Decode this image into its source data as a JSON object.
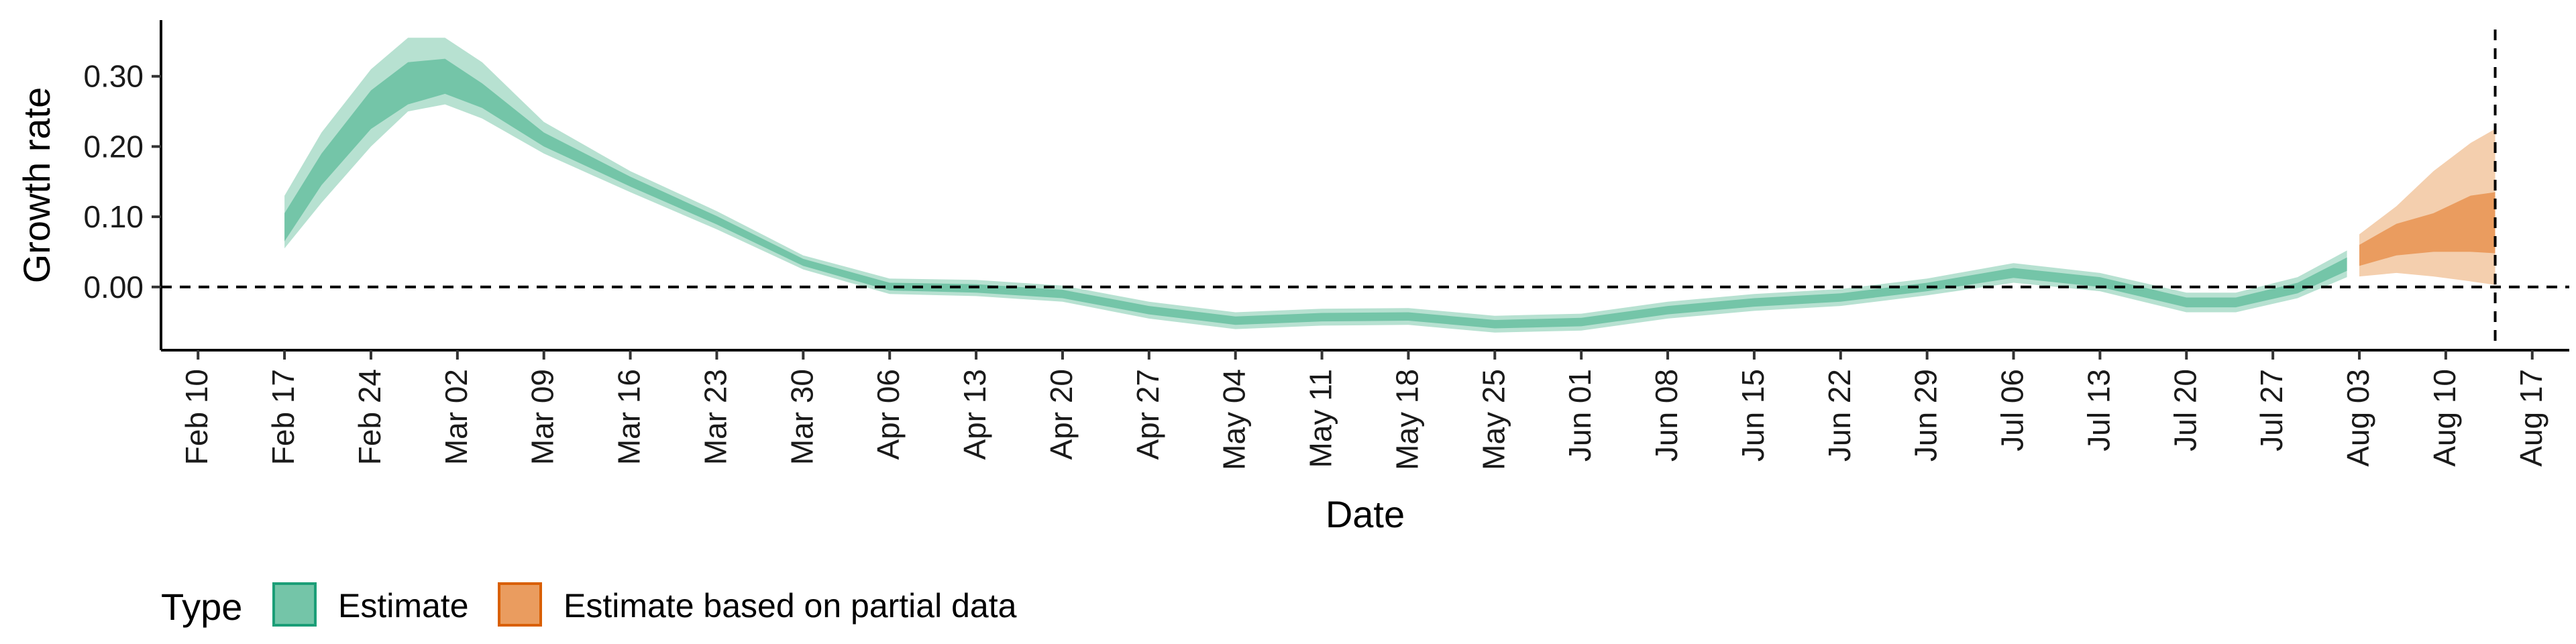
{
  "chart_data": {
    "type": "area",
    "xlabel": "Date",
    "ylabel": "Growth rate",
    "x_range": [
      "2020-02-07",
      "2020-08-20"
    ],
    "ylim": [
      -0.09,
      0.38
    ],
    "y_ticks": [
      0.0,
      0.1,
      0.2,
      0.3
    ],
    "y_tick_labels": [
      "0.00",
      "0.10",
      "0.20",
      "0.30"
    ],
    "x_ticks": [
      "2020-02-10",
      "2020-02-17",
      "2020-02-24",
      "2020-03-02",
      "2020-03-09",
      "2020-03-16",
      "2020-03-23",
      "2020-03-30",
      "2020-04-06",
      "2020-04-13",
      "2020-04-20",
      "2020-04-27",
      "2020-05-04",
      "2020-05-11",
      "2020-05-18",
      "2020-05-25",
      "2020-06-01",
      "2020-06-08",
      "2020-06-15",
      "2020-06-22",
      "2020-06-29",
      "2020-07-06",
      "2020-07-13",
      "2020-07-20",
      "2020-07-27",
      "2020-08-03",
      "2020-08-10",
      "2020-08-17"
    ],
    "x_tick_labels": [
      "Feb 10",
      "Feb 17",
      "Feb 24",
      "Mar 02",
      "Mar 09",
      "Mar 16",
      "Mar 23",
      "Mar 30",
      "Apr 06",
      "Apr 13",
      "Apr 20",
      "Apr 27",
      "May 04",
      "May 11",
      "May 18",
      "May 25",
      "Jun 01",
      "Jun 08",
      "Jun 15",
      "Jun 22",
      "Jun 29",
      "Jul 06",
      "Jul 13",
      "Jul 20",
      "Jul 27",
      "Aug 03",
      "Aug 10",
      "Aug 17"
    ],
    "reference_lines": {
      "horizontal_y": 0.0,
      "vertical_x": "2020-08-14",
      "style": "dashed"
    },
    "grid": false,
    "legend": {
      "position": "bottom-left",
      "title": "Type",
      "entries": [
        {
          "label": "Estimate",
          "fill": "#74c5a8",
          "stroke": "#1b9e77"
        },
        {
          "label": "Estimate based on partial data",
          "fill": "#ea9c5f",
          "stroke": "#d95f02"
        }
      ]
    },
    "series": [
      {
        "name": "Estimate",
        "color_outer": "#b7e1d1",
        "color_inner": "#74c5a8",
        "points": [
          {
            "x": "2020-02-17",
            "y": 0.08,
            "lo90": 0.055,
            "hi90": 0.13,
            "lo50": 0.065,
            "hi50": 0.105
          },
          {
            "x": "2020-02-20",
            "y": 0.17,
            "lo90": 0.12,
            "hi90": 0.22,
            "lo50": 0.145,
            "hi50": 0.19
          },
          {
            "x": "2020-02-24",
            "y": 0.25,
            "lo90": 0.2,
            "hi90": 0.31,
            "lo50": 0.225,
            "hi50": 0.28
          },
          {
            "x": "2020-02-27",
            "y": 0.29,
            "lo90": 0.25,
            "hi90": 0.355,
            "lo50": 0.26,
            "hi50": 0.32
          },
          {
            "x": "2020-03-01",
            "y": 0.3,
            "lo90": 0.26,
            "hi90": 0.355,
            "lo50": 0.275,
            "hi50": 0.325
          },
          {
            "x": "2020-03-04",
            "y": 0.27,
            "lo90": 0.24,
            "hi90": 0.32,
            "lo50": 0.255,
            "hi50": 0.29
          },
          {
            "x": "2020-03-09",
            "y": 0.21,
            "lo90": 0.19,
            "hi90": 0.235,
            "lo50": 0.2,
            "hi50": 0.22
          },
          {
            "x": "2020-03-16",
            "y": 0.15,
            "lo90": 0.135,
            "hi90": 0.165,
            "lo50": 0.143,
            "hi50": 0.157
          },
          {
            "x": "2020-03-23",
            "y": 0.095,
            "lo90": 0.082,
            "hi90": 0.108,
            "lo50": 0.089,
            "hi50": 0.101
          },
          {
            "x": "2020-03-30",
            "y": 0.035,
            "lo90": 0.025,
            "hi90": 0.045,
            "lo50": 0.03,
            "hi50": 0.04
          },
          {
            "x": "2020-04-06",
            "y": 0.0,
            "lo90": -0.01,
            "hi90": 0.012,
            "lo50": -0.005,
            "hi50": 0.006
          },
          {
            "x": "2020-04-13",
            "y": -0.003,
            "lo90": -0.013,
            "hi90": 0.01,
            "lo50": -0.008,
            "hi50": 0.004
          },
          {
            "x": "2020-04-20",
            "y": -0.01,
            "lo90": -0.021,
            "hi90": 0.002,
            "lo50": -0.016,
            "hi50": -0.004
          },
          {
            "x": "2020-04-27",
            "y": -0.033,
            "lo90": -0.045,
            "hi90": -0.021,
            "lo50": -0.039,
            "hi50": -0.027
          },
          {
            "x": "2020-05-04",
            "y": -0.048,
            "lo90": -0.06,
            "hi90": -0.036,
            "lo50": -0.054,
            "hi50": -0.042
          },
          {
            "x": "2020-05-11",
            "y": -0.043,
            "lo90": -0.055,
            "hi90": -0.031,
            "lo50": -0.049,
            "hi50": -0.037
          },
          {
            "x": "2020-05-18",
            "y": -0.042,
            "lo90": -0.054,
            "hi90": -0.03,
            "lo50": -0.048,
            "hi50": -0.036
          },
          {
            "x": "2020-05-25",
            "y": -0.053,
            "lo90": -0.065,
            "hi90": -0.041,
            "lo50": -0.059,
            "hi50": -0.047
          },
          {
            "x": "2020-06-01",
            "y": -0.05,
            "lo90": -0.062,
            "hi90": -0.038,
            "lo50": -0.056,
            "hi50": -0.044
          },
          {
            "x": "2020-06-08",
            "y": -0.033,
            "lo90": -0.045,
            "hi90": -0.021,
            "lo50": -0.039,
            "hi50": -0.027
          },
          {
            "x": "2020-06-15",
            "y": -0.022,
            "lo90": -0.034,
            "hi90": -0.01,
            "lo50": -0.028,
            "hi50": -0.016
          },
          {
            "x": "2020-06-22",
            "y": -0.015,
            "lo90": -0.027,
            "hi90": -0.003,
            "lo50": -0.021,
            "hi50": -0.009
          },
          {
            "x": "2020-06-29",
            "y": 0.0,
            "lo90": -0.012,
            "hi90": 0.012,
            "lo50": -0.006,
            "hi50": 0.006
          },
          {
            "x": "2020-07-06",
            "y": 0.02,
            "lo90": 0.006,
            "hi90": 0.034,
            "lo50": 0.013,
            "hi50": 0.027
          },
          {
            "x": "2020-07-13",
            "y": 0.007,
            "lo90": -0.006,
            "hi90": 0.02,
            "lo50": 0.0,
            "hi50": 0.014
          },
          {
            "x": "2020-07-20",
            "y": -0.022,
            "lo90": -0.036,
            "hi90": -0.008,
            "lo50": -0.029,
            "hi50": -0.015
          },
          {
            "x": "2020-07-24",
            "y": -0.022,
            "lo90": -0.036,
            "hi90": -0.008,
            "lo50": -0.029,
            "hi50": -0.015
          },
          {
            "x": "2020-07-29",
            "y": -0.002,
            "lo90": -0.016,
            "hi90": 0.014,
            "lo50": -0.009,
            "hi50": 0.006
          },
          {
            "x": "2020-08-02",
            "y": 0.032,
            "lo90": 0.014,
            "hi90": 0.052,
            "lo50": 0.023,
            "hi50": 0.042
          }
        ]
      },
      {
        "name": "Estimate based on partial data",
        "color_outer": "#f4cfae",
        "color_inner": "#ea9c5f",
        "points": [
          {
            "x": "2020-08-03",
            "y": 0.045,
            "lo90": 0.015,
            "hi90": 0.075,
            "lo50": 0.03,
            "hi50": 0.06
          },
          {
            "x": "2020-08-06",
            "y": 0.065,
            "lo90": 0.02,
            "hi90": 0.115,
            "lo50": 0.045,
            "hi50": 0.09
          },
          {
            "x": "2020-08-09",
            "y": 0.075,
            "lo90": 0.015,
            "hi90": 0.165,
            "lo50": 0.05,
            "hi50": 0.105
          },
          {
            "x": "2020-08-12",
            "y": 0.09,
            "lo90": 0.008,
            "hi90": 0.205,
            "lo50": 0.05,
            "hi50": 0.13
          },
          {
            "x": "2020-08-14",
            "y": 0.09,
            "lo90": 0.003,
            "hi90": 0.225,
            "lo50": 0.048,
            "hi50": 0.135
          }
        ]
      }
    ]
  }
}
